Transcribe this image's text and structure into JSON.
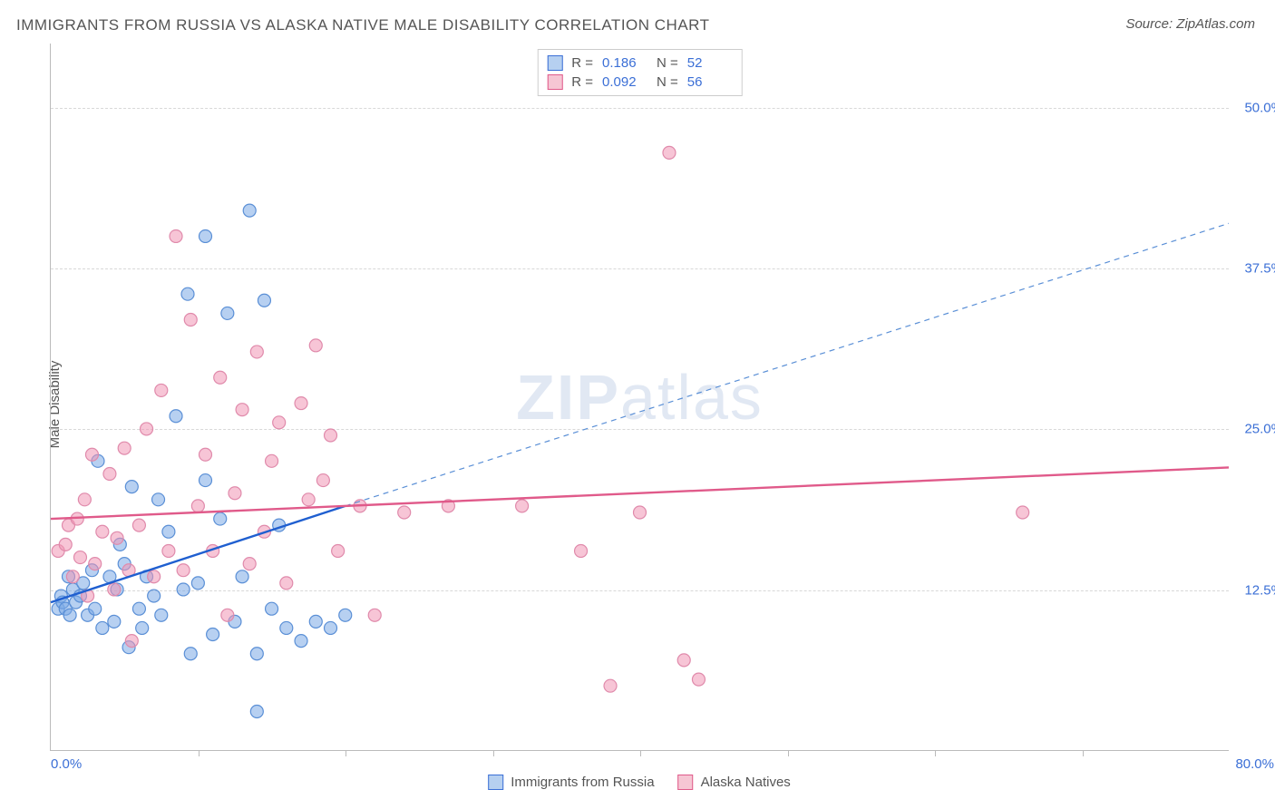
{
  "title": "IMMIGRANTS FROM RUSSIA VS ALASKA NATIVE MALE DISABILITY CORRELATION CHART",
  "source": "Source: ZipAtlas.com",
  "y_axis_label": "Male Disability",
  "watermark_zip": "ZIP",
  "watermark_atlas": "atlas",
  "chart": {
    "type": "scatter",
    "xlim": [
      0,
      80
    ],
    "ylim": [
      0,
      55
    ],
    "x_ticks": [
      0,
      80
    ],
    "x_tick_labels": [
      "0.0%",
      "80.0%"
    ],
    "x_minor_ticks": [
      10,
      20,
      30,
      40,
      50,
      60,
      70
    ],
    "y_gridlines": [
      12.5,
      25.0,
      37.5,
      50.0
    ],
    "y_gridline_labels": [
      "12.5%",
      "25.0%",
      "37.5%",
      "50.0%"
    ],
    "marker_radius": 7,
    "marker_stroke_width": 1.2,
    "grid_color": "#d8d8d8",
    "axis_color": "#bbbbbb",
    "background_color": "#ffffff",
    "tick_label_color": "#3b6fd6",
    "title_color": "#555555"
  },
  "legend_top": {
    "rows": [
      {
        "swatch_fill": "#b6d0f0",
        "swatch_stroke": "#3b6fd6",
        "r_label": "R =",
        "r_value": "0.186",
        "n_label": "N =",
        "n_value": "52"
      },
      {
        "swatch_fill": "#f6c6d4",
        "swatch_stroke": "#e05a8a",
        "r_label": "R =",
        "r_value": "0.092",
        "n_label": "N =",
        "n_value": "56"
      }
    ]
  },
  "legend_bottom": {
    "items": [
      {
        "swatch_fill": "#b6d0f0",
        "swatch_stroke": "#3b6fd6",
        "label": "Immigrants from Russia"
      },
      {
        "swatch_fill": "#f6c6d4",
        "swatch_stroke": "#e05a8a",
        "label": "Alaska Natives"
      }
    ]
  },
  "series": [
    {
      "name": "Immigrants from Russia",
      "fill": "rgba(123,170,230,0.55)",
      "stroke": "#5a8fd6",
      "trend": {
        "x1": 0,
        "y1": 11.5,
        "x2": 20,
        "y2": 19,
        "stroke": "#1f5fd0",
        "width": 2.4,
        "dash": ""
      },
      "trend_ext": {
        "x1": 20,
        "y1": 19,
        "x2": 80,
        "y2": 41,
        "stroke": "#5a8fd6",
        "width": 1.2,
        "dash": "6 5"
      },
      "points": [
        [
          0.5,
          11
        ],
        [
          0.7,
          12
        ],
        [
          0.8,
          11.5
        ],
        [
          1,
          11
        ],
        [
          1.2,
          13.5
        ],
        [
          1.3,
          10.5
        ],
        [
          1.5,
          12.5
        ],
        [
          1.7,
          11.5
        ],
        [
          2,
          12
        ],
        [
          2.2,
          13
        ],
        [
          2.5,
          10.5
        ],
        [
          2.8,
          14
        ],
        [
          3,
          11
        ],
        [
          3.2,
          22.5
        ],
        [
          3.5,
          9.5
        ],
        [
          4,
          13.5
        ],
        [
          4.3,
          10
        ],
        [
          4.5,
          12.5
        ],
        [
          4.7,
          16
        ],
        [
          5,
          14.5
        ],
        [
          5.3,
          8
        ],
        [
          5.5,
          20.5
        ],
        [
          6,
          11
        ],
        [
          6.2,
          9.5
        ],
        [
          6.5,
          13.5
        ],
        [
          7,
          12
        ],
        [
          7.3,
          19.5
        ],
        [
          7.5,
          10.5
        ],
        [
          8,
          17
        ],
        [
          8.5,
          26
        ],
        [
          9,
          12.5
        ],
        [
          9.3,
          35.5
        ],
        [
          9.5,
          7.5
        ],
        [
          10,
          13
        ],
        [
          10.5,
          21
        ],
        [
          11,
          9
        ],
        [
          11.5,
          18
        ],
        [
          12,
          34
        ],
        [
          12.5,
          10
        ],
        [
          13,
          13.5
        ],
        [
          13.5,
          42
        ],
        [
          14,
          7.5
        ],
        [
          14.5,
          35
        ],
        [
          15,
          11
        ],
        [
          15.5,
          17.5
        ],
        [
          16,
          9.5
        ],
        [
          17,
          8.5
        ],
        [
          18,
          10
        ],
        [
          19,
          9.5
        ],
        [
          10.5,
          40
        ],
        [
          14,
          3
        ],
        [
          20,
          10.5
        ]
      ]
    },
    {
      "name": "Alaska Natives",
      "fill": "rgba(240,150,180,0.55)",
      "stroke": "#e08aab",
      "trend": {
        "x1": 0,
        "y1": 18,
        "x2": 80,
        "y2": 22,
        "stroke": "#e05a8a",
        "width": 2.4,
        "dash": ""
      },
      "points": [
        [
          0.5,
          15.5
        ],
        [
          1,
          16
        ],
        [
          1.2,
          17.5
        ],
        [
          1.5,
          13.5
        ],
        [
          1.8,
          18
        ],
        [
          2,
          15
        ],
        [
          2.3,
          19.5
        ],
        [
          2.5,
          12
        ],
        [
          2.8,
          23
        ],
        [
          3,
          14.5
        ],
        [
          3.5,
          17
        ],
        [
          4,
          21.5
        ],
        [
          4.3,
          12.5
        ],
        [
          4.5,
          16.5
        ],
        [
          5,
          23.5
        ],
        [
          5.3,
          14
        ],
        [
          5.5,
          8.5
        ],
        [
          6,
          17.5
        ],
        [
          6.5,
          25
        ],
        [
          7,
          13.5
        ],
        [
          7.5,
          28
        ],
        [
          8,
          15.5
        ],
        [
          8.5,
          40
        ],
        [
          9,
          14
        ],
        [
          9.5,
          33.5
        ],
        [
          10,
          19
        ],
        [
          10.5,
          23
        ],
        [
          11,
          15.5
        ],
        [
          11.5,
          29
        ],
        [
          12,
          10.5
        ],
        [
          12.5,
          20
        ],
        [
          13,
          26.5
        ],
        [
          13.5,
          14.5
        ],
        [
          14,
          31
        ],
        [
          14.5,
          17
        ],
        [
          15,
          22.5
        ],
        [
          15.5,
          25.5
        ],
        [
          16,
          13
        ],
        [
          17,
          27
        ],
        [
          17.5,
          19.5
        ],
        [
          18,
          31.5
        ],
        [
          18.5,
          21
        ],
        [
          19,
          24.5
        ],
        [
          19.5,
          15.5
        ],
        [
          21,
          19
        ],
        [
          22,
          10.5
        ],
        [
          24,
          18.5
        ],
        [
          27,
          19
        ],
        [
          32,
          19
        ],
        [
          36,
          15.5
        ],
        [
          38,
          5
        ],
        [
          40,
          18.5
        ],
        [
          42,
          46.5
        ],
        [
          43,
          7
        ],
        [
          44,
          5.5
        ],
        [
          66,
          18.5
        ]
      ]
    }
  ]
}
